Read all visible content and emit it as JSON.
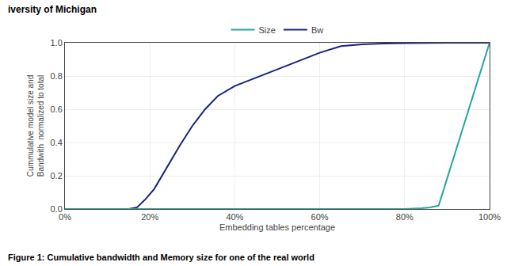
{
  "chart_data": {
    "type": "line",
    "xlabel": "Embedding tables percentage",
    "ylabel": "Cummulative model size and\nBandwith  normalized to total",
    "annotations": [
      "iversity of Michigan",
      "Figure 1: Cumulative bandwidth and Memory size for one of the real world"
    ],
    "series": [
      {
        "name": "Bw",
        "color": "#1a237e",
        "x": [
          0.0,
          0.15,
          0.17,
          0.19,
          0.21,
          0.24,
          0.27,
          0.3,
          0.33,
          0.36,
          0.4,
          0.45,
          0.5,
          0.55,
          0.6,
          0.65,
          0.7,
          0.75,
          0.8,
          0.9,
          1.0
        ],
        "values": [
          0.0,
          0.0,
          0.01,
          0.06,
          0.12,
          0.25,
          0.38,
          0.5,
          0.6,
          0.68,
          0.74,
          0.79,
          0.84,
          0.89,
          0.94,
          0.98,
          0.99,
          0.995,
          0.998,
          1.0,
          1.0
        ]
      },
      {
        "name": "Size",
        "color": "#26a69a",
        "x": [
          0.0,
          0.8,
          0.84,
          0.86,
          0.88,
          1.0
        ],
        "values": [
          0.0,
          0.0,
          0.005,
          0.01,
          0.02,
          1.0
        ]
      }
    ],
    "xlim": [
      0,
      1
    ],
    "ylim": [
      0,
      1.0
    ],
    "xticks": [
      {
        "value": 0,
        "label": "0%"
      },
      {
        "value": 0.2,
        "label": "20%"
      },
      {
        "value": 0.4,
        "label": "40%"
      },
      {
        "value": 0.6,
        "label": "60%"
      },
      {
        "value": 0.8,
        "label": "80%"
      },
      {
        "value": 1.0,
        "label": "100%"
      }
    ],
    "yticks": [
      {
        "value": 0,
        "label": "0.0"
      },
      0.2,
      0.4,
      0.6,
      0.8,
      {
        "value": 1.0,
        "label": "1.0"
      }
    ],
    "grid": true,
    "legend": "top"
  }
}
